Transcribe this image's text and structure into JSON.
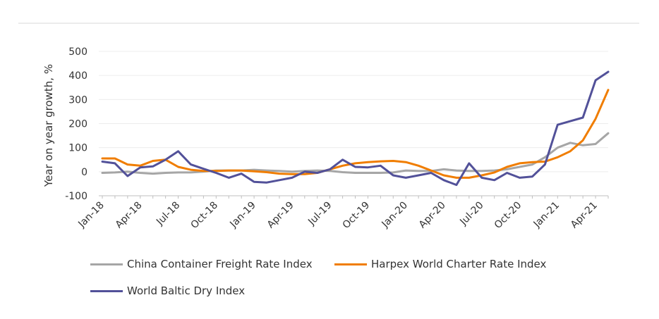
{
  "chart_data": {
    "type": "line",
    "title": "",
    "xlabel": "",
    "ylabel": "Year on year growth, %",
    "ylim": [
      -100,
      500
    ],
    "yticks": [
      -100,
      0,
      100,
      200,
      300,
      400,
      500
    ],
    "grid": "horizontal",
    "legend_position": "bottom",
    "x": [
      "Jan-18",
      "Feb-18",
      "Mar-18",
      "Apr-18",
      "May-18",
      "Jun-18",
      "Jul-18",
      "Aug-18",
      "Sep-18",
      "Oct-18",
      "Nov-18",
      "Dec-18",
      "Jan-19",
      "Feb-19",
      "Mar-19",
      "Apr-19",
      "May-19",
      "Jun-19",
      "Jul-19",
      "Aug-19",
      "Sep-19",
      "Oct-19",
      "Nov-19",
      "Dec-19",
      "Jan-20",
      "Feb-20",
      "Mar-20",
      "Apr-20",
      "May-20",
      "Jun-20",
      "Jul-20",
      "Aug-20",
      "Sep-20",
      "Oct-20",
      "Nov-20",
      "Dec-20",
      "Jan-21",
      "Feb-21",
      "Mar-21",
      "Apr-21",
      "May-21"
    ],
    "tick_labels": [
      "Jan-18",
      "Apr-18",
      "Jul-18",
      "Oct-18",
      "Jan-19",
      "Apr-19",
      "Jul-19",
      "Oct-19",
      "Jan-20",
      "Apr-20",
      "Jul-20",
      "Oct-20",
      "Jan-21",
      "Apr-21"
    ],
    "series": [
      {
        "name": "China Container Freight Rate Index",
        "color": "#a6a6a6",
        "values": [
          -5,
          -3,
          0,
          -5,
          -8,
          -5,
          -3,
          -3,
          0,
          5,
          5,
          5,
          8,
          5,
          3,
          0,
          3,
          5,
          3,
          -2,
          -5,
          -5,
          -5,
          -3,
          5,
          3,
          3,
          10,
          5,
          3,
          3,
          5,
          10,
          20,
          30,
          60,
          100,
          120,
          110,
          115,
          160
        ]
      },
      {
        "name": "Harpex World Charter Rate Index",
        "color": "#f07d00",
        "values": [
          55,
          55,
          30,
          25,
          45,
          50,
          20,
          8,
          3,
          3,
          5,
          5,
          2,
          -2,
          -8,
          -10,
          -10,
          -5,
          10,
          25,
          35,
          40,
          43,
          45,
          40,
          25,
          5,
          -15,
          -25,
          -25,
          -15,
          -3,
          20,
          35,
          40,
          42,
          60,
          85,
          130,
          220,
          340
        ]
      },
      {
        "name": "World Baltic Dry Index",
        "color": "#525199",
        "values": [
          42,
          35,
          -18,
          18,
          22,
          50,
          85,
          30,
          12,
          -5,
          -25,
          -8,
          -42,
          -45,
          -35,
          -25,
          0,
          -5,
          10,
          50,
          20,
          18,
          25,
          -15,
          -25,
          -15,
          -5,
          -35,
          -55,
          35,
          -25,
          -35,
          -5,
          -25,
          -20,
          30,
          195,
          210,
          225,
          380,
          415
        ]
      }
    ]
  }
}
